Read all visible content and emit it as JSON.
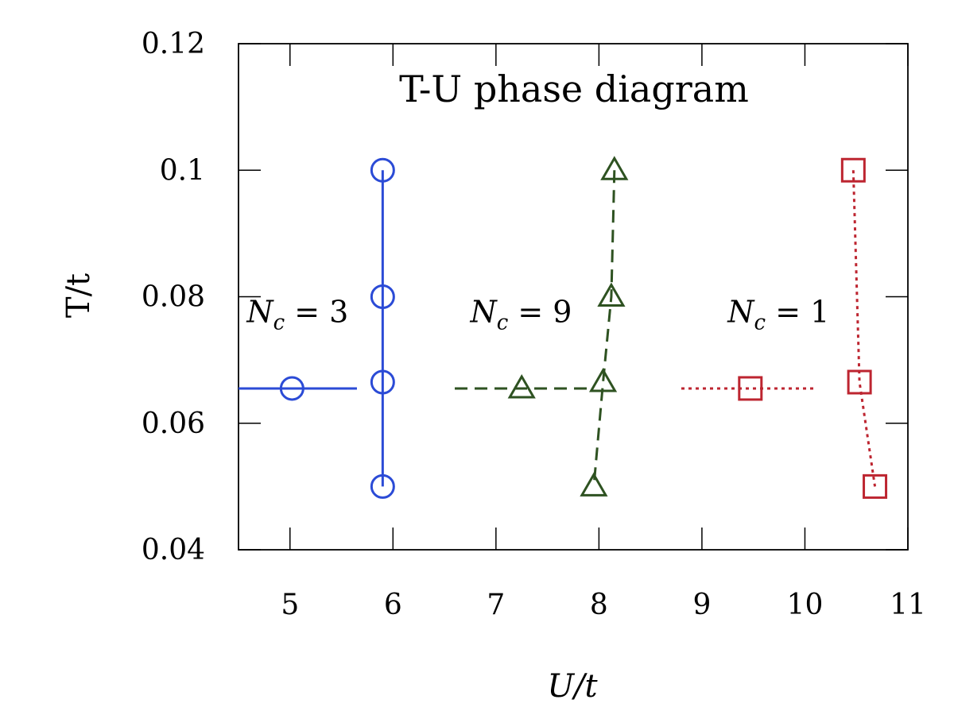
{
  "chart_data": {
    "type": "line",
    "title": "T-U phase diagram",
    "xlabel": "U/t",
    "ylabel": "T/t",
    "xlim": [
      4.5,
      11
    ],
    "ylim": [
      0.04,
      0.12
    ],
    "x_ticks": [
      5,
      6,
      7,
      8,
      9,
      10,
      11
    ],
    "x_tick_labels": [
      "5",
      "6",
      "7",
      "8",
      "9",
      "10",
      "11"
    ],
    "y_ticks": [
      0.04,
      0.06,
      0.08,
      0.1,
      0.12
    ],
    "y_tick_labels": [
      "0.04",
      "0.06",
      "0.08",
      "0.1",
      "0.12"
    ],
    "grid": false,
    "series": [
      {
        "name": "N_c = 3",
        "color": "#2b4bd6",
        "marker": "circle",
        "line": "solid",
        "points": [
          [
            5.9,
            0.1
          ],
          [
            5.9,
            0.08
          ],
          [
            5.9,
            0.0665
          ],
          [
            5.9,
            0.05
          ]
        ],
        "horizontal_segment": {
          "x": [
            4.5,
            5.65
          ],
          "y": 0.0655
        },
        "horizontal_marker": [
          5.02,
          0.0655
        ],
        "label_parts": {
          "main": "N",
          "sub": "c",
          "rest": " = 3"
        }
      },
      {
        "name": "N_c = 9",
        "color": "#2e5221",
        "marker": "triangle",
        "line": "dashed",
        "points": [
          [
            8.15,
            0.1
          ],
          [
            8.12,
            0.08
          ],
          [
            8.04,
            0.0665
          ],
          [
            7.95,
            0.05
          ]
        ],
        "horizontal_segment": {
          "x": [
            6.6,
            7.95
          ],
          "y": 0.0655
        },
        "horizontal_marker": [
          7.25,
          0.0655
        ],
        "label_parts": {
          "main": "N",
          "sub": "c",
          "rest": " = 9"
        }
      },
      {
        "name": "N_c = 1",
        "color": "#bd2530",
        "marker": "square",
        "line": "dotted",
        "points": [
          [
            10.47,
            0.1
          ],
          [
            10.53,
            0.0665
          ],
          [
            10.68,
            0.05
          ]
        ],
        "horizontal_segment": {
          "x": [
            8.8,
            10.1
          ],
          "y": 0.0655
        },
        "horizontal_marker": [
          9.47,
          0.0655
        ],
        "label_parts": {
          "main": "N",
          "sub": "c",
          "rest": " = 1"
        }
      }
    ],
    "annotations": [
      {
        "series": 0,
        "x": 4.58,
        "y": 0.0775
      },
      {
        "series": 1,
        "x": 6.75,
        "y": 0.0775
      },
      {
        "series": 2,
        "x": 9.25,
        "y": 0.0775
      }
    ]
  }
}
